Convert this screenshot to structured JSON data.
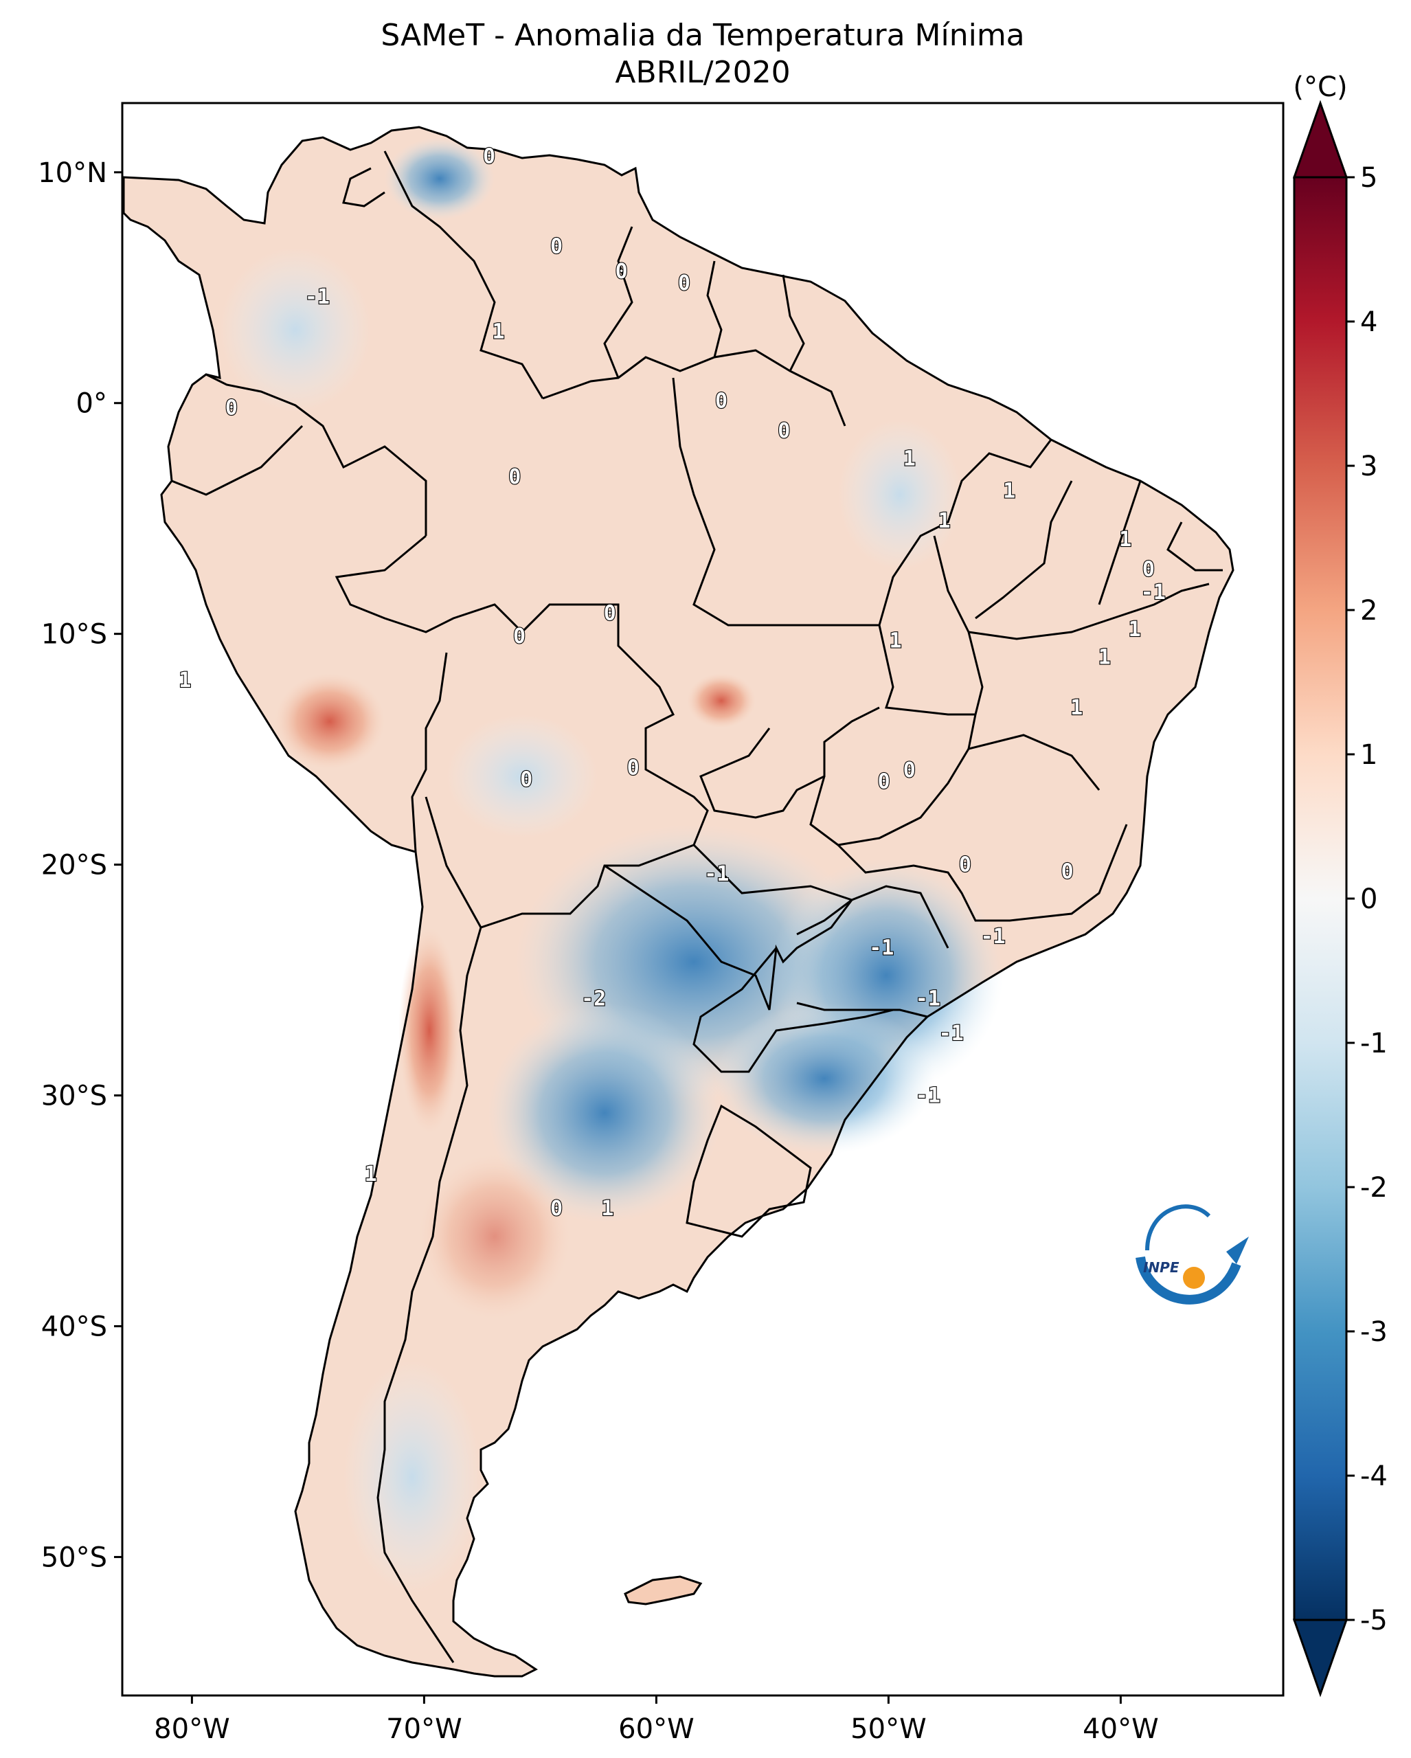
{
  "title": {
    "line1": "SAMeT - Anomalia da Temperatura Mínima",
    "line2": "ABRIL/2020"
  },
  "map": {
    "extent": {
      "lon": [
        -83,
        -33
      ],
      "lat": [
        -56,
        13
      ]
    },
    "lon_ticks": [
      {
        "value": -80,
        "label": "80°W"
      },
      {
        "value": -70,
        "label": "70°W"
      },
      {
        "value": -60,
        "label": "60°W"
      },
      {
        "value": -50,
        "label": "50°W"
      },
      {
        "value": -40,
        "label": "40°W"
      }
    ],
    "lat_ticks": [
      {
        "value": 10,
        "label": "10°N"
      },
      {
        "value": 0,
        "label": "0°"
      },
      {
        "value": -10,
        "label": "10°S"
      },
      {
        "value": -20,
        "label": "20°S"
      },
      {
        "value": -30,
        "label": "30°S"
      },
      {
        "value": -40,
        "label": "40°S"
      },
      {
        "value": -50,
        "label": "50°S"
      }
    ],
    "contour_labels": [
      {
        "text": "0",
        "lon": -67.2,
        "lat": 10.7
      },
      {
        "text": "-1",
        "lon": -74.6,
        "lat": 4.6
      },
      {
        "text": "0",
        "lon": -64.3,
        "lat": 6.8
      },
      {
        "text": "0",
        "lon": -61.5,
        "lat": 5.7
      },
      {
        "text": "0",
        "lon": -58.8,
        "lat": 5.2
      },
      {
        "text": "1",
        "lon": -66.8,
        "lat": 3.1
      },
      {
        "text": "0",
        "lon": -78.3,
        "lat": -0.2
      },
      {
        "text": "0",
        "lon": -57.2,
        "lat": 0.1
      },
      {
        "text": "0",
        "lon": -54.5,
        "lat": -1.2
      },
      {
        "text": "0",
        "lon": -66.1,
        "lat": -3.2
      },
      {
        "text": "1",
        "lon": -49.1,
        "lat": -2.4
      },
      {
        "text": "1",
        "lon": -44.8,
        "lat": -3.8
      },
      {
        "text": "1",
        "lon": -47.6,
        "lat": -5.1
      },
      {
        "text": "1",
        "lon": -39.8,
        "lat": -5.9
      },
      {
        "text": "0",
        "lon": -38.8,
        "lat": -7.2
      },
      {
        "text": "-1",
        "lon": -38.6,
        "lat": -8.2
      },
      {
        "text": "0",
        "lon": -62.0,
        "lat": -9.1
      },
      {
        "text": "0",
        "lon": -65.9,
        "lat": -10.1
      },
      {
        "text": "1",
        "lon": -49.7,
        "lat": -10.3
      },
      {
        "text": "1",
        "lon": -39.4,
        "lat": -9.8
      },
      {
        "text": "1",
        "lon": -40.7,
        "lat": -11.0
      },
      {
        "text": "1",
        "lon": -80.3,
        "lat": -12.0
      },
      {
        "text": "1",
        "lon": -41.9,
        "lat": -13.2
      },
      {
        "text": "0",
        "lon": -61.0,
        "lat": -15.8
      },
      {
        "text": "0",
        "lon": -49.1,
        "lat": -15.9
      },
      {
        "text": "0",
        "lon": -50.2,
        "lat": -16.4
      },
      {
        "text": "0",
        "lon": -65.6,
        "lat": -16.3
      },
      {
        "text": "0",
        "lon": -46.7,
        "lat": -20.0
      },
      {
        "text": "0",
        "lon": -42.3,
        "lat": -20.3
      },
      {
        "text": "-1",
        "lon": -57.4,
        "lat": -20.4
      },
      {
        "text": "-1",
        "lon": -45.5,
        "lat": -23.1
      },
      {
        "text": "-1",
        "lon": -50.3,
        "lat": -23.6
      },
      {
        "text": "-2",
        "lon": -62.7,
        "lat": -25.8
      },
      {
        "text": "-1",
        "lon": -48.3,
        "lat": -25.8
      },
      {
        "text": "-1",
        "lon": -47.3,
        "lat": -27.3
      },
      {
        "text": "-1",
        "lon": -48.3,
        "lat": -30.0
      },
      {
        "text": "1",
        "lon": -72.3,
        "lat": -33.4
      },
      {
        "text": "0",
        "lon": -64.3,
        "lat": -34.9
      },
      {
        "text": "1",
        "lon": -62.1,
        "lat": -34.9
      }
    ]
  },
  "colorbar": {
    "unit": "(°C)",
    "min": -5,
    "max": 5,
    "ticks": [
      {
        "value": 5,
        "label": "5"
      },
      {
        "value": 4,
        "label": "4"
      },
      {
        "value": 3,
        "label": "3"
      },
      {
        "value": 2,
        "label": "2"
      },
      {
        "value": 1,
        "label": "1"
      },
      {
        "value": 0,
        "label": "0"
      },
      {
        "value": -1,
        "label": "-1"
      },
      {
        "value": -2,
        "label": "-2"
      },
      {
        "value": -3,
        "label": "-3"
      },
      {
        "value": -4,
        "label": "-4"
      },
      {
        "value": -5,
        "label": "-5"
      }
    ]
  },
  "logo": {
    "text": "INPE"
  }
}
